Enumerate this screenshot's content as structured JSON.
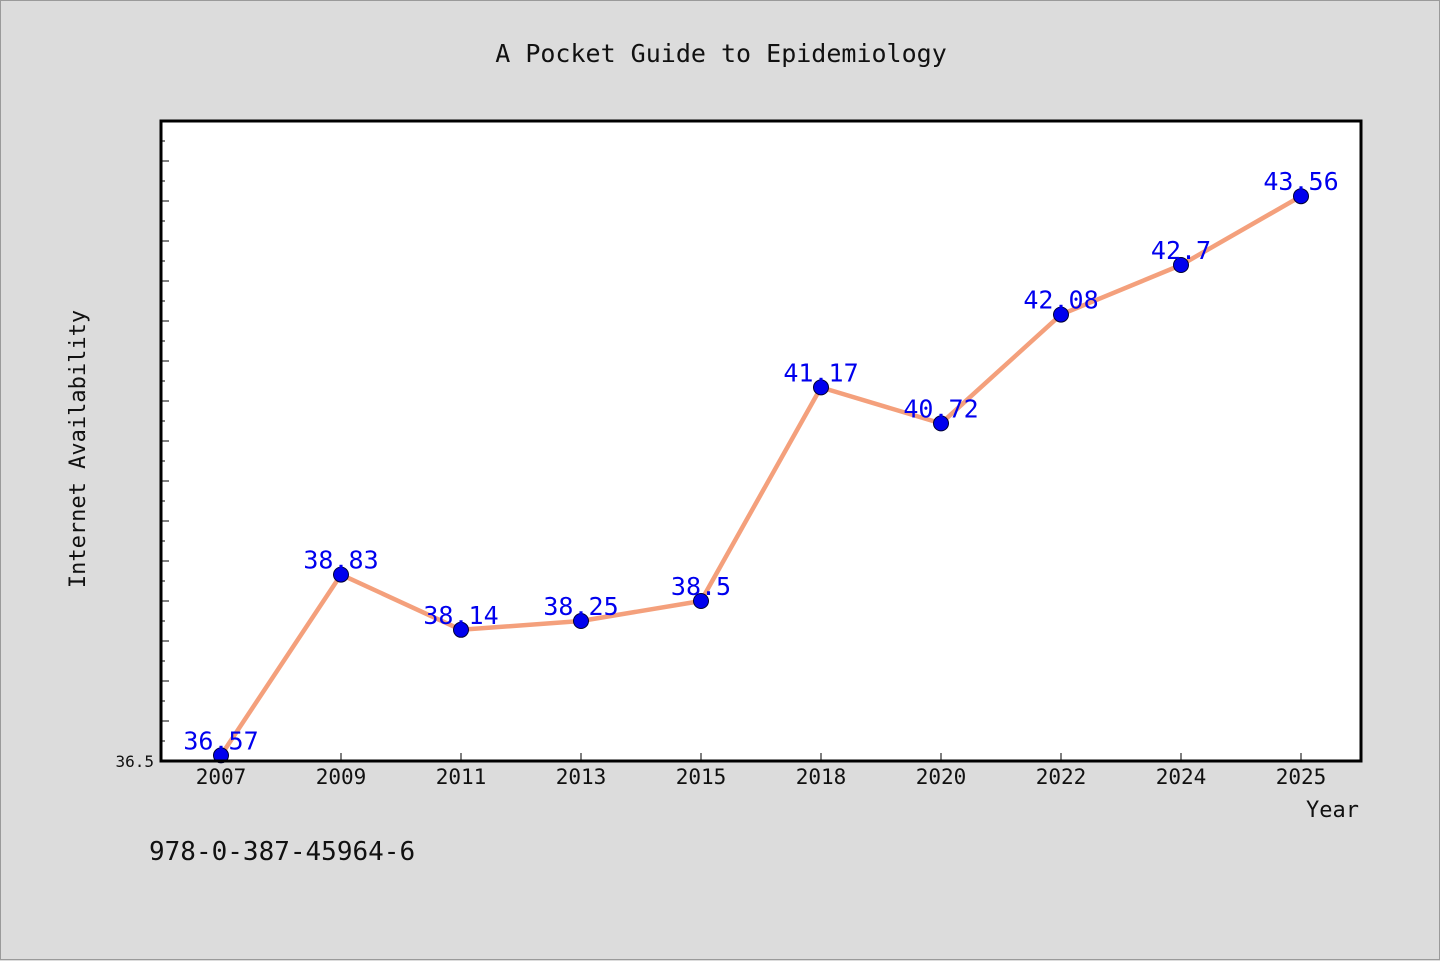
{
  "chart_data": {
    "type": "line",
    "title": "A Pocket Guide to Epidemiology",
    "xlabel": "Year",
    "ylabel": "Internet Availability",
    "categories": [
      "2007",
      "2009",
      "2011",
      "2013",
      "2015",
      "2018",
      "2020",
      "2022",
      "2024",
      "2025"
    ],
    "series": [
      {
        "values": [
          36.57,
          38.83,
          38.14,
          38.25,
          38.5,
          41.17,
          40.72,
          42.08,
          42.7,
          43.56
        ]
      }
    ],
    "data_labels": [
      "36.57",
      "38.83",
      "38.14",
      "38.25",
      "38.5",
      "41.17",
      "40.72",
      "42.08",
      "42.7",
      "43.56"
    ],
    "ylim": [
      36.5,
      44.5
    ],
    "y_tick_labels": [
      "36.5"
    ],
    "grid": false,
    "legend": "none",
    "colors": {
      "line": "#f4a07c",
      "marker": "#0000ee",
      "data_label": "#0000ee",
      "background": "#dcdcdc",
      "plot_area": "#ffffff"
    }
  },
  "footer": {
    "isbn": "978-0-387-45964-6"
  }
}
